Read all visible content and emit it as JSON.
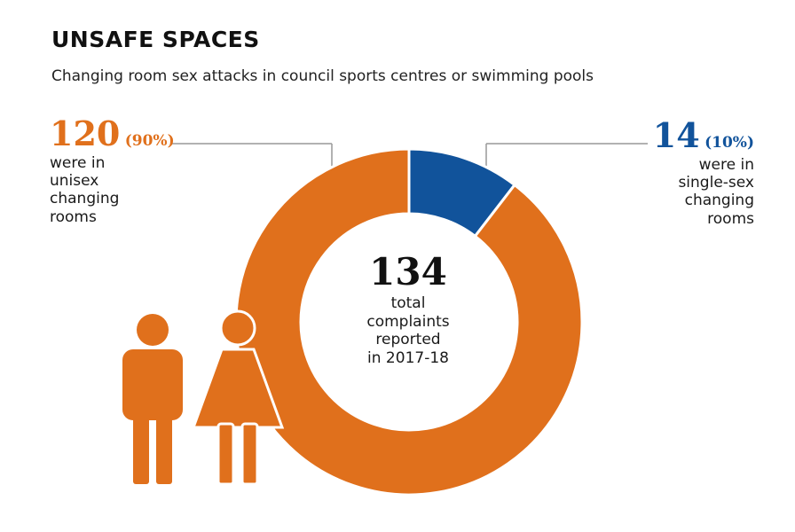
{
  "header": {
    "title": "UNSAFE SPACES",
    "subtitle": "Changing room sex attacks in council sports centres or swimming pools"
  },
  "callouts": {
    "unisex": {
      "value": "120",
      "percent": "(90%)",
      "lines": [
        "were in",
        "unisex",
        "changing",
        "rooms"
      ]
    },
    "single_sex": {
      "value": "14",
      "percent": "(10%)",
      "lines": [
        "were in",
        "single-sex",
        "changing",
        "rooms"
      ]
    }
  },
  "center": {
    "value": "134",
    "lines": [
      "total",
      "complaints",
      "reported",
      "in 2017-18"
    ]
  },
  "colors": {
    "unisex": "#e0701c",
    "single_sex": "#11539b",
    "leader_line": "#999999"
  },
  "icons": [
    "man-icon",
    "woman-icon"
  ],
  "chart_data": {
    "type": "pie",
    "title": "UNSAFE SPACES",
    "subtitle": "Changing room sex attacks in council sports centres or swimming pools",
    "donut": true,
    "slices": [
      {
        "label": "single-sex changing rooms",
        "value": 14,
        "percent": 10,
        "color": "#11539b"
      },
      {
        "label": "unisex changing rooms",
        "value": 120,
        "percent": 90,
        "color": "#e0701c"
      }
    ],
    "total": 134,
    "total_label": "total complaints reported in 2017-18"
  }
}
